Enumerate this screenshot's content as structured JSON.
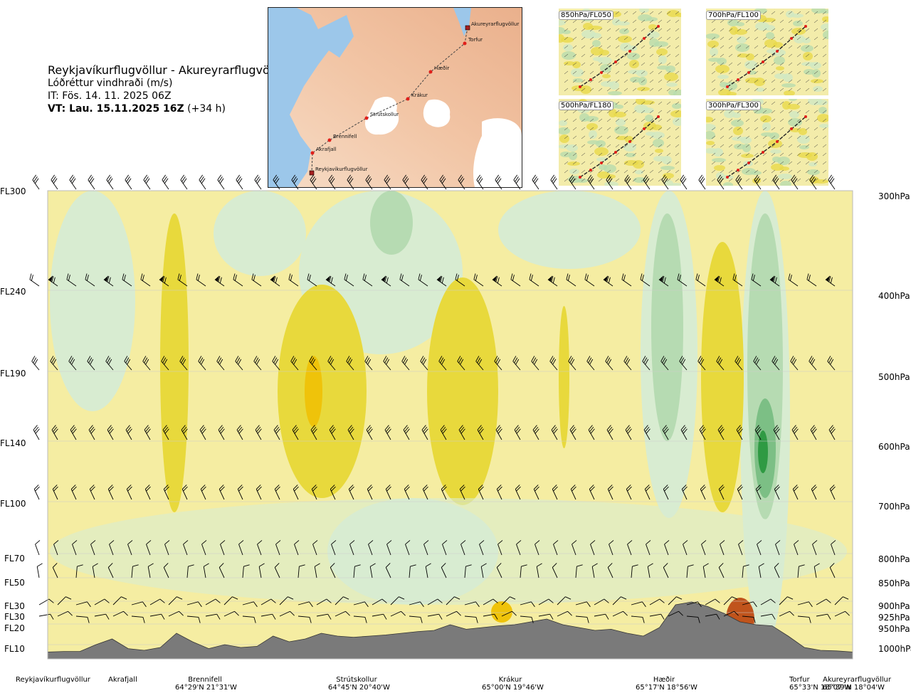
{
  "header": {
    "title": "Reykjavíkurflugvöllur - Akureyrarflugvöllur",
    "subtitle": "Lóðréttur vindhraði (m/s)",
    "issue_time": "IT: Fös. 14. 11. 2025 06Z",
    "valid_prefix": "VT: Lau. 15.11.2025 16Z",
    "valid_suffix": "(+34 h)"
  },
  "map": {
    "places": [
      {
        "name": "Akureyrarflugvöllur"
      },
      {
        "name": "Torfur"
      },
      {
        "name": "Hæðir"
      },
      {
        "name": "Krákur"
      },
      {
        "name": "Strútskollur"
      },
      {
        "name": "Brennifell"
      },
      {
        "name": "Akrafjall"
      },
      {
        "name": "Reykjavíkurflugvöllur"
      }
    ],
    "colors": {
      "land": "#f2c5a5",
      "sea": "#9cc7ea",
      "route": "#444444",
      "point": "#e0201b",
      "glacier": "#ffffff"
    }
  },
  "thumbnails": [
    {
      "label": "850hPa/FL050"
    },
    {
      "label": "700hPa/FL100"
    },
    {
      "label": "500hPa/FL180"
    },
    {
      "label": "300hPa/FL300"
    }
  ],
  "chart_data": {
    "type": "heatmap",
    "title": "Lóðréttur vindhraði (m/s)",
    "x_axis": {
      "locations": [
        {
          "name": "Reykjavíkurflugvöllur",
          "coord": ""
        },
        {
          "name": "Akrafjall",
          "coord": ""
        },
        {
          "name": "Brennifell",
          "coord": "64°29'N 21°31'W"
        },
        {
          "name": "Strútskollur",
          "coord": "64°45'N 20°40'W"
        },
        {
          "name": "Krákur",
          "coord": "65°00'N 19°46'W"
        },
        {
          "name": "Hæðir",
          "coord": "65°17'N 18°56'W"
        },
        {
          "name": "Torfur",
          "coord": "65°33'N 18°07'W"
        },
        {
          "name": "Akureyrarflugvöllur",
          "coord": "65°39'N 18°04'W"
        }
      ]
    },
    "y_axis_left": [
      "FL300",
      "FL240",
      "FL190",
      "FL140",
      "FL100",
      "FL70",
      "FL50",
      "FL30",
      "FL30",
      "FL20",
      "FL10"
    ],
    "y_axis_right": [
      "300hPa",
      "400hPa",
      "500hPa",
      "600hPa",
      "700hPa",
      "800hPa",
      "850hPa",
      "900hPa",
      "925hPa",
      "950hPa",
      "1000hPa"
    ],
    "pressure_levels_hpa": [
      300,
      400,
      500,
      600,
      700,
      800,
      850,
      900,
      925,
      950,
      1000
    ],
    "colors": {
      "strong_down": "#2f9a43",
      "mod_down": "#7cbf85",
      "weak_down": "#b6dbb2",
      "slight_down": "#d8ecd1",
      "neutral": "#fffbe6",
      "slight_up": "#f5eda2",
      "weak_up": "#eee37f",
      "mod_up": "#e8d93c",
      "strong_up": "#efc30a",
      "extreme_up": "#c0541c",
      "terrain": "#7a7a7a"
    },
    "terrain_profile_fraction": [
      0.02,
      0.03,
      0.03,
      0.15,
      0.25,
      0.08,
      0.05,
      0.1,
      0.35,
      0.2,
      0.08,
      0.15,
      0.1,
      0.12,
      0.3,
      0.2,
      0.25,
      0.35,
      0.3,
      0.28,
      0.3,
      0.32,
      0.35,
      0.38,
      0.4,
      0.5,
      0.42,
      0.45,
      0.48,
      0.5,
      0.55,
      0.6,
      0.5,
      0.45,
      0.4,
      0.42,
      0.35,
      0.3,
      0.45,
      0.85,
      0.9,
      0.82,
      0.7,
      0.55,
      0.5,
      0.48,
      0.3,
      0.1,
      0.05,
      0.04,
      0.02
    ]
  }
}
